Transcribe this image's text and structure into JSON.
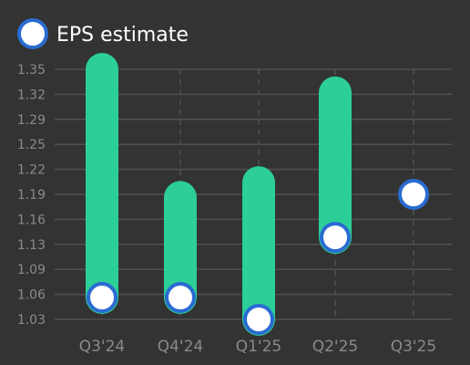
{
  "legend": {
    "label": "EPS estimate",
    "marker_fill": "#ffffff",
    "marker_stroke": "#2a6bd1"
  },
  "colors": {
    "background": "#333333",
    "bar": "#2bcf97",
    "grid": "#505050",
    "tick_label": "#8a8a8a",
    "legend_text": "#ffffff"
  },
  "chart_data": {
    "type": "bar",
    "subtype": "range-bar with estimate markers",
    "categories": [
      "Q3'24",
      "Q4'24",
      "Q1'25",
      "Q2'25",
      "Q3'25"
    ],
    "y_ticks": [
      "1.35",
      "1.32",
      "1.29",
      "1.25",
      "1.22",
      "1.19",
      "1.16",
      "1.13",
      "1.09",
      "1.06",
      "1.03"
    ],
    "ylim": [
      1.03,
      1.35
    ],
    "grid": true,
    "legend_position": "top-left",
    "series": [
      {
        "name": "EPS estimate",
        "values": [
          1.058,
          1.058,
          1.03,
          1.135,
          1.19
        ]
      },
      {
        "values": [
          1.35,
          1.186,
          1.205,
          1.32,
          null
        ]
      }
    ]
  }
}
